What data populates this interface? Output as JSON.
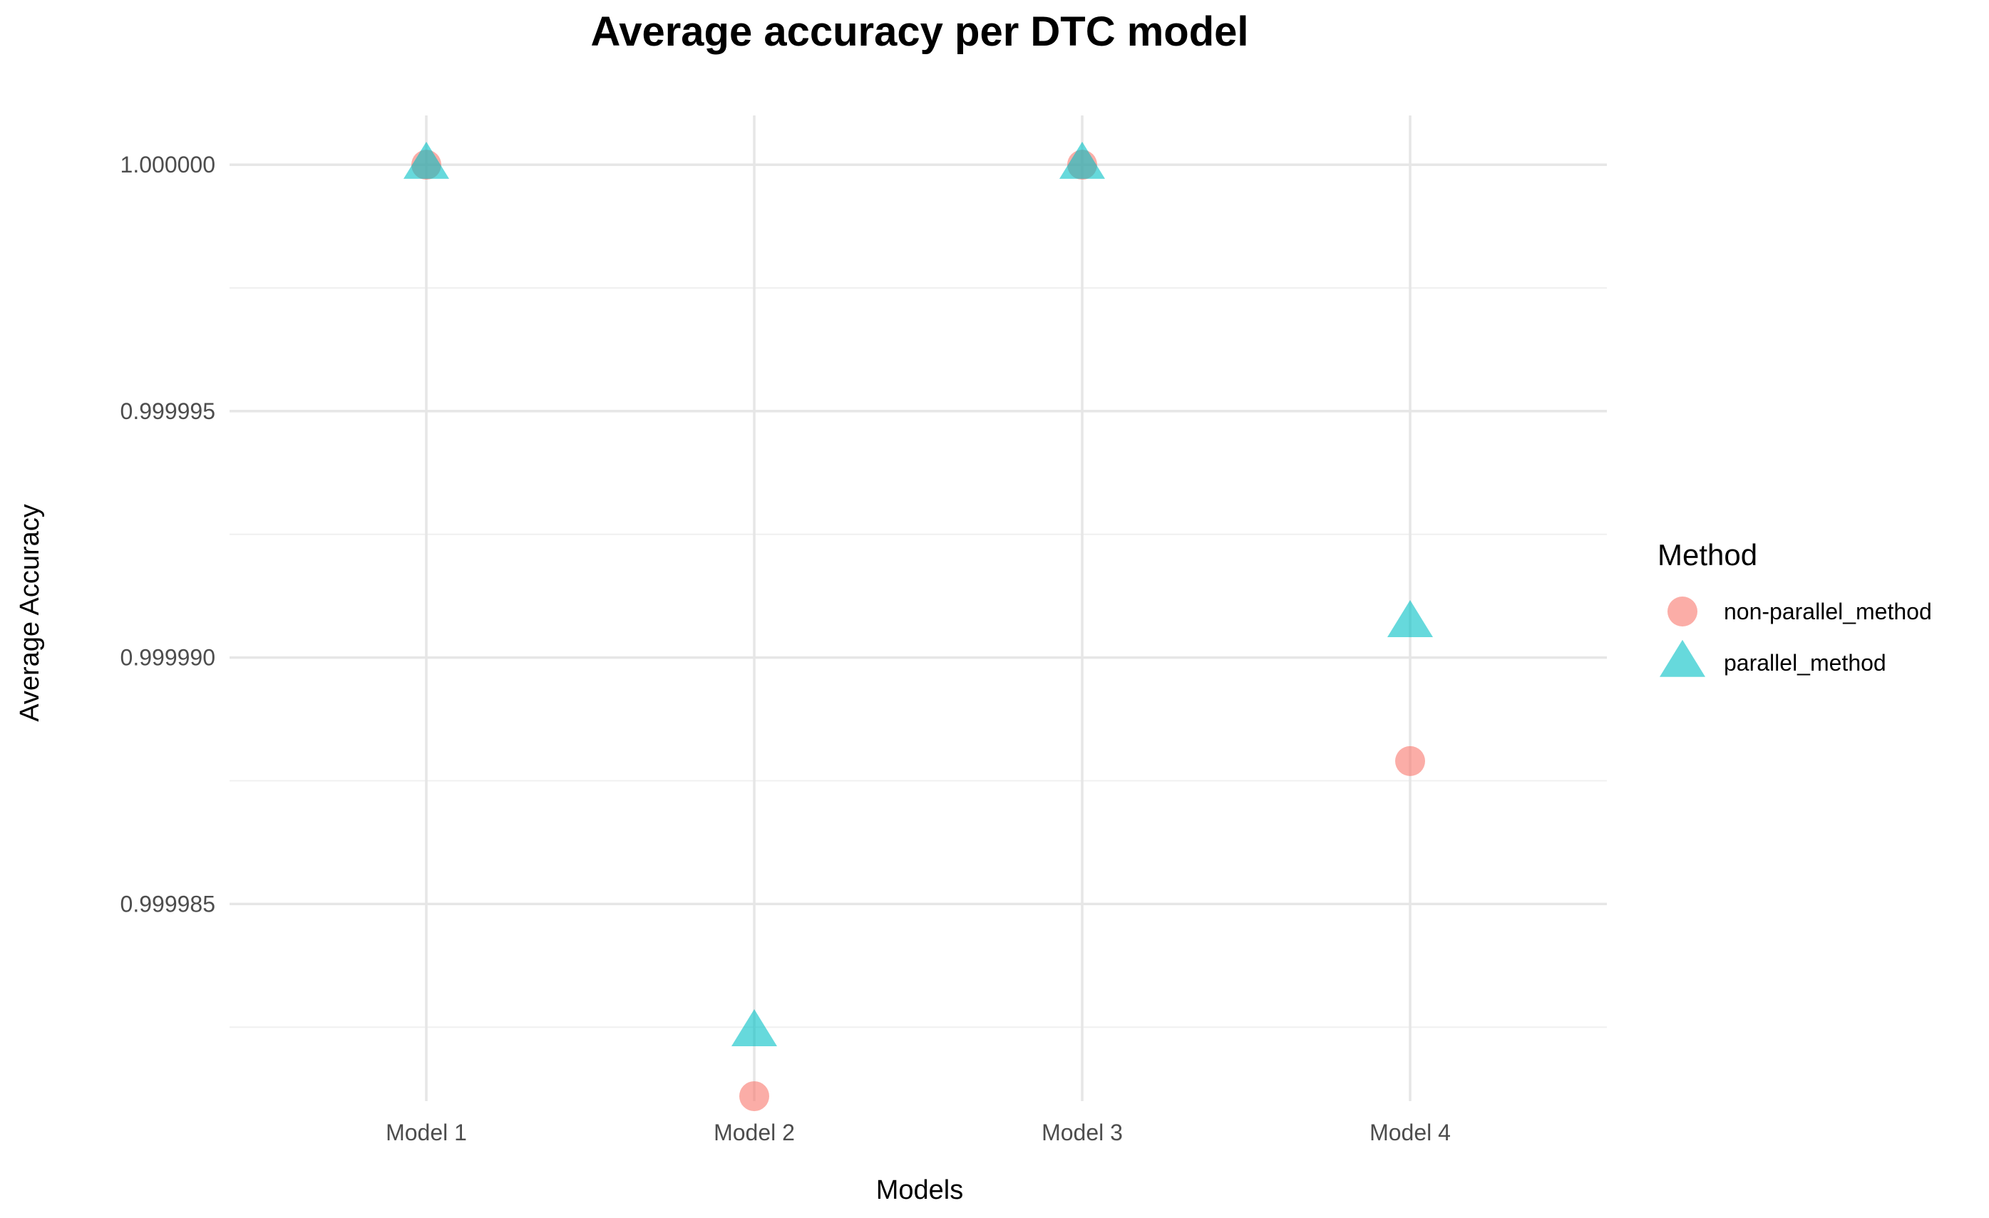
{
  "chart_data": {
    "type": "scatter",
    "title": "Average accuracy per DTC model",
    "xlabel": "Models",
    "ylabel": "Average Accuracy",
    "categories": [
      "Model 1",
      "Model 2",
      "Model 3",
      "Model 4"
    ],
    "ylim": [
      0.999981,
      1.000001
    ],
    "yticks": [
      0.999985,
      0.99999,
      0.999995,
      1.0
    ],
    "ytick_labels": [
      "0.999985",
      "0.999990",
      "0.999995",
      "1.000000"
    ],
    "grid": true,
    "legend": {
      "title": "Method",
      "position": "right"
    },
    "series": [
      {
        "name": "non-parallel_method",
        "shape": "circle",
        "color": "#F8766D",
        "values": [
          1.0,
          0.9999811,
          1.0,
          0.9999879
        ]
      },
      {
        "name": "parallel_method",
        "shape": "triangle",
        "color": "#00BFC4",
        "values": [
          1.0,
          0.9999824,
          1.0,
          0.9999907
        ]
      }
    ]
  }
}
